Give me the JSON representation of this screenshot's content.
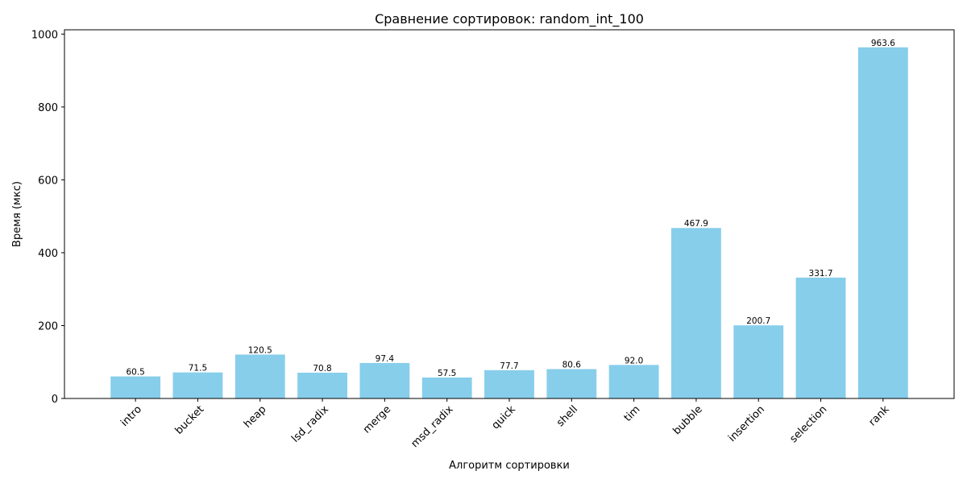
{
  "chart_data": {
    "type": "bar",
    "title": "Сравнение сортировок: random_int_100",
    "xlabel": "Алгоритм сортировки",
    "ylabel": "Время (мкс)",
    "categories": [
      "intro",
      "bucket",
      "heap",
      "lsd_radix",
      "merge",
      "msd_radix",
      "quick",
      "shell",
      "tim",
      "bubble",
      "insertion",
      "selection",
      "rank"
    ],
    "values": [
      60.5,
      71.5,
      120.5,
      70.8,
      97.4,
      57.5,
      77.7,
      80.6,
      92.0,
      467.9,
      200.7,
      331.7,
      963.6
    ],
    "value_labels": [
      "60.5",
      "71.5",
      "120.5",
      "70.8",
      "97.4",
      "57.5",
      "77.7",
      "80.6",
      "92.0",
      "467.9",
      "200.7",
      "331.7",
      "963.6"
    ],
    "yticks": [
      0,
      200,
      400,
      600,
      800,
      1000
    ],
    "ylim": [
      0,
      1011.8
    ],
    "grid": false,
    "bar_color": "#87ceeb"
  }
}
